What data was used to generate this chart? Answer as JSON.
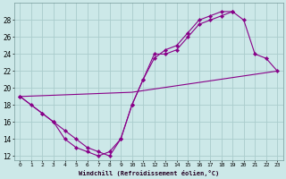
{
  "background_color": "#cce8e8",
  "grid_color": "#aacccc",
  "line_color": "#880088",
  "xlim": [
    -0.5,
    23.5
  ],
  "ylim": [
    11.5,
    30
  ],
  "xlabel": "Windchill (Refroidissement éolien,°C)",
  "xticks": [
    0,
    1,
    2,
    3,
    4,
    5,
    6,
    7,
    8,
    9,
    10,
    11,
    12,
    13,
    14,
    15,
    16,
    17,
    18,
    19,
    20,
    21,
    22,
    23
  ],
  "yticks": [
    12,
    14,
    16,
    18,
    20,
    22,
    24,
    26,
    28
  ],
  "curve1_x": [
    0,
    1,
    2,
    3,
    4,
    5,
    6,
    7,
    8,
    9,
    10,
    11,
    12,
    13,
    14,
    15,
    16,
    17,
    18,
    19
  ],
  "curve1_y": [
    19,
    18,
    17,
    16,
    14,
    13,
    12.5,
    12,
    12.5,
    14,
    18,
    21,
    24,
    24,
    24.5,
    26,
    27.5,
    28,
    28.5,
    29
  ],
  "curve2_x": [
    0,
    10,
    23
  ],
  "curve2_y": [
    19,
    19.5,
    22
  ],
  "curve3_x": [
    0,
    2,
    3,
    4,
    5,
    6,
    7,
    8,
    9,
    10,
    11,
    12,
    13,
    14,
    15,
    16,
    17,
    18,
    19,
    20,
    21,
    22,
    23
  ],
  "curve3_y": [
    19,
    17,
    16,
    15,
    14,
    13,
    12.5,
    12,
    14,
    18,
    21,
    23.5,
    24.5,
    25,
    26.5,
    28,
    28.5,
    29,
    29,
    28,
    24,
    23.5,
    22
  ]
}
